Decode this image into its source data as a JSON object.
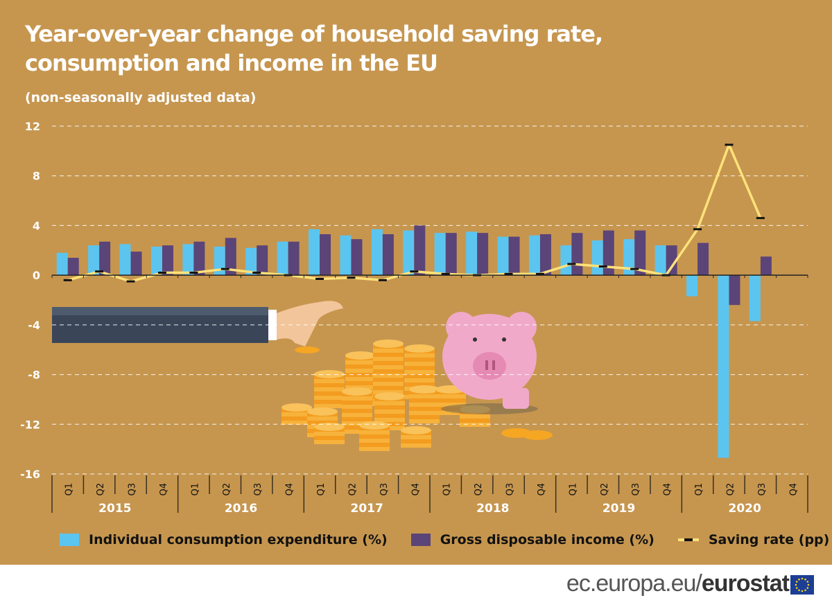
{
  "title": "Year-over-year change of household saving rate, consumption and income in the EU",
  "subtitle": "(non-seasonally adjusted data)",
  "footer": {
    "domain": "ec.europa.eu/",
    "brand": "eurostat"
  },
  "colors": {
    "background": "#C6964F",
    "consumption": "#5BC5F0",
    "income": "#5B4478",
    "saving": "#FFE27A"
  },
  "chart_data": {
    "type": "bar",
    "title": "Year-over-year change of household saving rate, consumption and income in the EU",
    "ylim": [
      -16,
      12
    ],
    "yticks": [
      12,
      8,
      4,
      0,
      -4,
      -8,
      -12,
      -16
    ],
    "ytick_labels": [
      "12",
      "8",
      "4",
      "0",
      "-4",
      "-8",
      "-12",
      "-16"
    ],
    "years": [
      "2015",
      "2016",
      "2017",
      "2018",
      "2019",
      "2020"
    ],
    "quarters": [
      "Q1",
      "Q2",
      "Q3",
      "Q4"
    ],
    "grid": true,
    "legend_position": "bottom",
    "series": [
      {
        "name": "Individual consumption expenditure (%)",
        "type": "bar",
        "values": [
          1.8,
          2.4,
          2.5,
          2.3,
          2.5,
          2.3,
          2.2,
          2.7,
          3.7,
          3.2,
          3.7,
          3.6,
          3.4,
          3.5,
          3.1,
          3.2,
          2.4,
          2.8,
          2.9,
          2.4,
          -1.7,
          -14.7,
          -3.7,
          null
        ]
      },
      {
        "name": "Gross disposable income (%)",
        "type": "bar",
        "values": [
          1.4,
          2.7,
          1.9,
          2.4,
          2.7,
          3.0,
          2.4,
          2.7,
          3.3,
          2.9,
          3.3,
          4.0,
          3.4,
          3.4,
          3.1,
          3.3,
          3.4,
          3.6,
          3.6,
          2.4,
          2.6,
          -2.4,
          1.5,
          null
        ]
      },
      {
        "name": "Saving rate (pp)",
        "type": "line",
        "values": [
          -0.4,
          0.3,
          -0.5,
          0.2,
          0.2,
          0.5,
          0.2,
          0.0,
          -0.3,
          -0.2,
          -0.4,
          0.3,
          0.1,
          0.0,
          0.1,
          0.1,
          0.9,
          0.7,
          0.5,
          0.0,
          3.7,
          10.5,
          4.6,
          null
        ]
      }
    ]
  }
}
